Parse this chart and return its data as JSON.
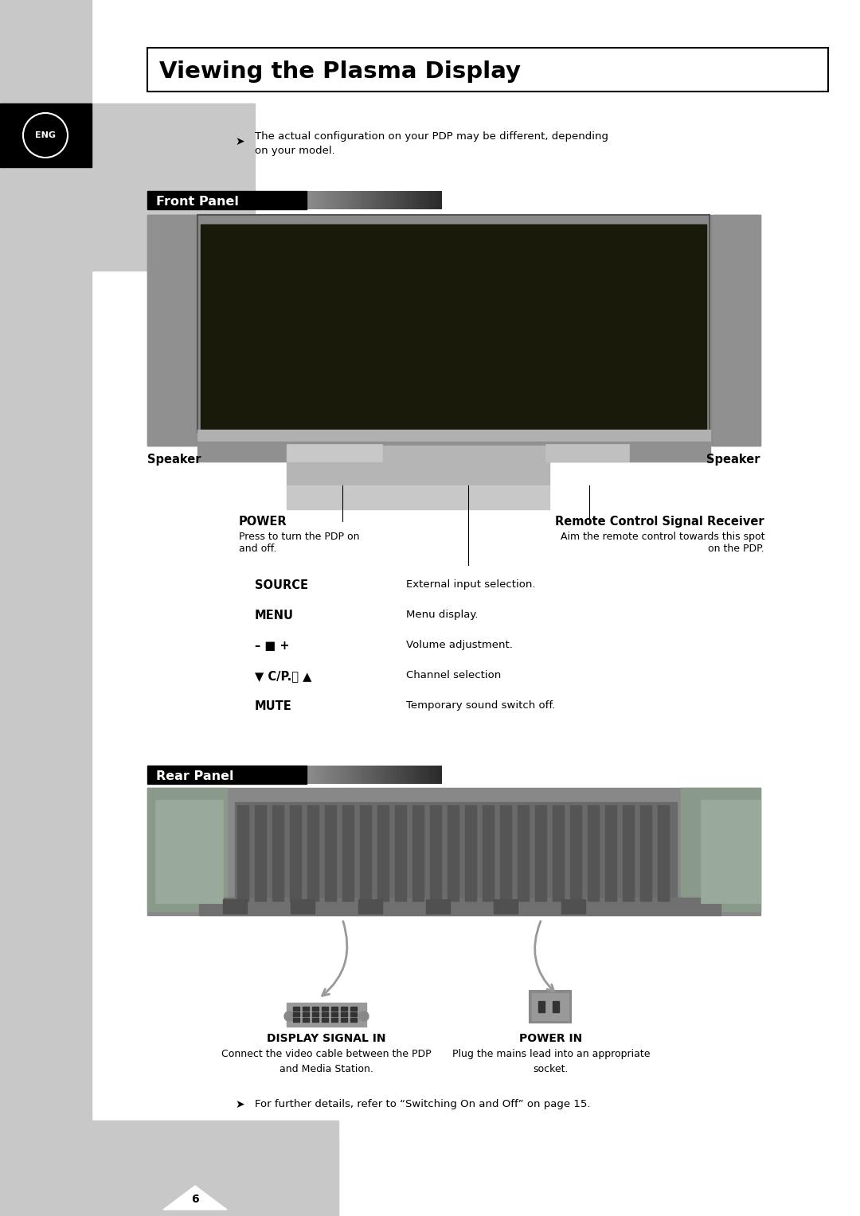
{
  "bg_color": "#ffffff",
  "left_bar_color": "#c8c8c8",
  "title": "Viewing the Plasma Display",
  "eng_label": "ENG",
  "note_text": "The actual configuration on your PDP may be different, depending\non your model.",
  "front_panel_label": "Front Panel",
  "rear_panel_label": "Rear Panel",
  "speaker_left": "Speaker",
  "speaker_right": "Speaker",
  "power_label": "POWER",
  "power_desc": "Press to turn the PDP on\nand off.",
  "remote_label": "Remote Control Signal Receiver",
  "remote_desc_1": "Aim the remote control towards this spot",
  "remote_desc_2": "on the PDP.",
  "buttons": [
    {
      "label": "SOURCE",
      "desc": "External input selection."
    },
    {
      "label": "MENU",
      "desc": "Menu display."
    },
    {
      "label": "– ■ +",
      "desc": "Volume adjustment."
    },
    {
      "label": "▼ C/P.⏻ ▲",
      "desc": "Channel selection"
    },
    {
      "label": "MUTE",
      "desc": "Temporary sound switch off."
    }
  ],
  "display_signal_label": "DISPLAY SIGNAL IN",
  "display_signal_desc": "Connect the video cable between the PDP\nand Media Station.",
  "power_in_label": "POWER IN",
  "power_in_desc": "Plug the mains lead into an appropriate\nsocket.",
  "footer_note": "For further details, refer to “Switching On and Off” on page 15.",
  "page_number": "6"
}
